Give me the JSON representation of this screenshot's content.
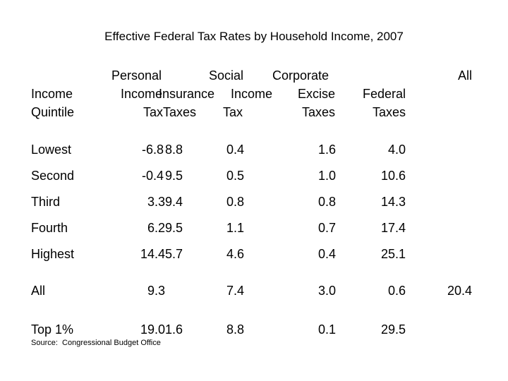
{
  "title": "Effective Federal Tax Rates by Household Income, 2007",
  "header": {
    "quintile": [
      "Income",
      "Quintile"
    ],
    "personal_income_tax": [
      "Personal",
      "Income",
      "Tax"
    ],
    "social_insurance_taxes": [
      "Social",
      "Insurance",
      "Taxes"
    ],
    "corporate_income_tax": [
      "Corporate",
      "Income",
      "Tax"
    ],
    "excise_taxes": [
      "Excise",
      "Taxes"
    ],
    "all_federal_taxes": [
      "All",
      "Federal",
      "Taxes"
    ]
  },
  "rows": [
    {
      "quintile": "Lowest",
      "personal": "-6.8",
      "social": "8.8",
      "corporate": "0.4",
      "excise": "1.6",
      "all": "4.0"
    },
    {
      "quintile": "Second",
      "personal": "-0.4",
      "social": "9.5",
      "corporate": "0.5",
      "excise": "1.0",
      "all": "10.6"
    },
    {
      "quintile": "Third",
      "personal": "3.3",
      "social": "9.4",
      "corporate": "0.8",
      "excise": "0.8",
      "all": "14.3"
    },
    {
      "quintile": "Fourth",
      "personal": "6.2",
      "social": "9.5",
      "corporate": "1.1",
      "excise": "0.7",
      "all": "17.4"
    },
    {
      "quintile": "Highest",
      "personal": "14.4",
      "social": "5.7",
      "corporate": "4.6",
      "excise": "0.4",
      "all": "25.1"
    },
    {
      "quintile": "All",
      "personal": "9.3",
      "social": "7.4",
      "corporate": "3.0",
      "excise": "0.6",
      "all": "20.4"
    },
    {
      "quintile": "Top 1%",
      "personal": "19.0",
      "social": "1.6",
      "corporate": "8.8",
      "excise": "0.1",
      "all": "29.5"
    }
  ],
  "source": "Source:  Congressional Budget Office"
}
